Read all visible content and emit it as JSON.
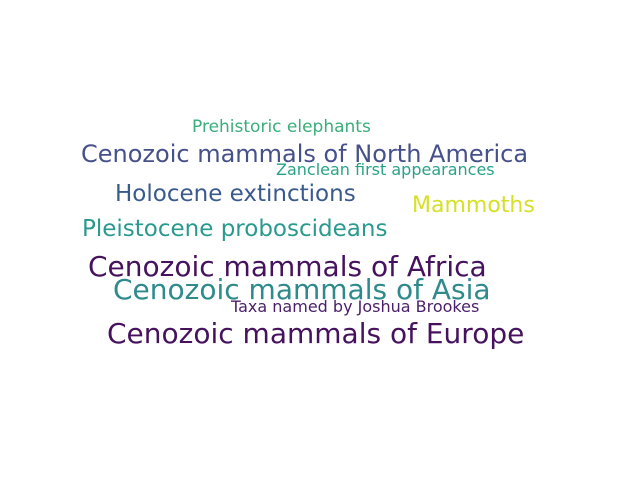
{
  "words": [
    {
      "text": "Prehistoric elephants",
      "color": "#3aae7a"
    },
    {
      "text": "Cenozoic mammals of North America",
      "color": "#46508a"
    },
    {
      "text": "Zanclean first appearances",
      "color": "#2aa287"
    },
    {
      "text": "Holocene extinctions",
      "color": "#3a5a8e"
    },
    {
      "text": "Mammoths",
      "color": "#d6e026"
    },
    {
      "text": "Pleistocene proboscideans",
      "color": "#2a9a8e"
    },
    {
      "text": "Cenozoic mammals of Africa",
      "color": "#46125e"
    },
    {
      "text": "Cenozoic mammals of Asia",
      "color": "#2f8a8c"
    },
    {
      "text": "Taxa named by Joshua Brookes",
      "color": "#4a1e6a"
    },
    {
      "text": "Cenozoic mammals of Europe",
      "color": "#46125e"
    }
  ]
}
